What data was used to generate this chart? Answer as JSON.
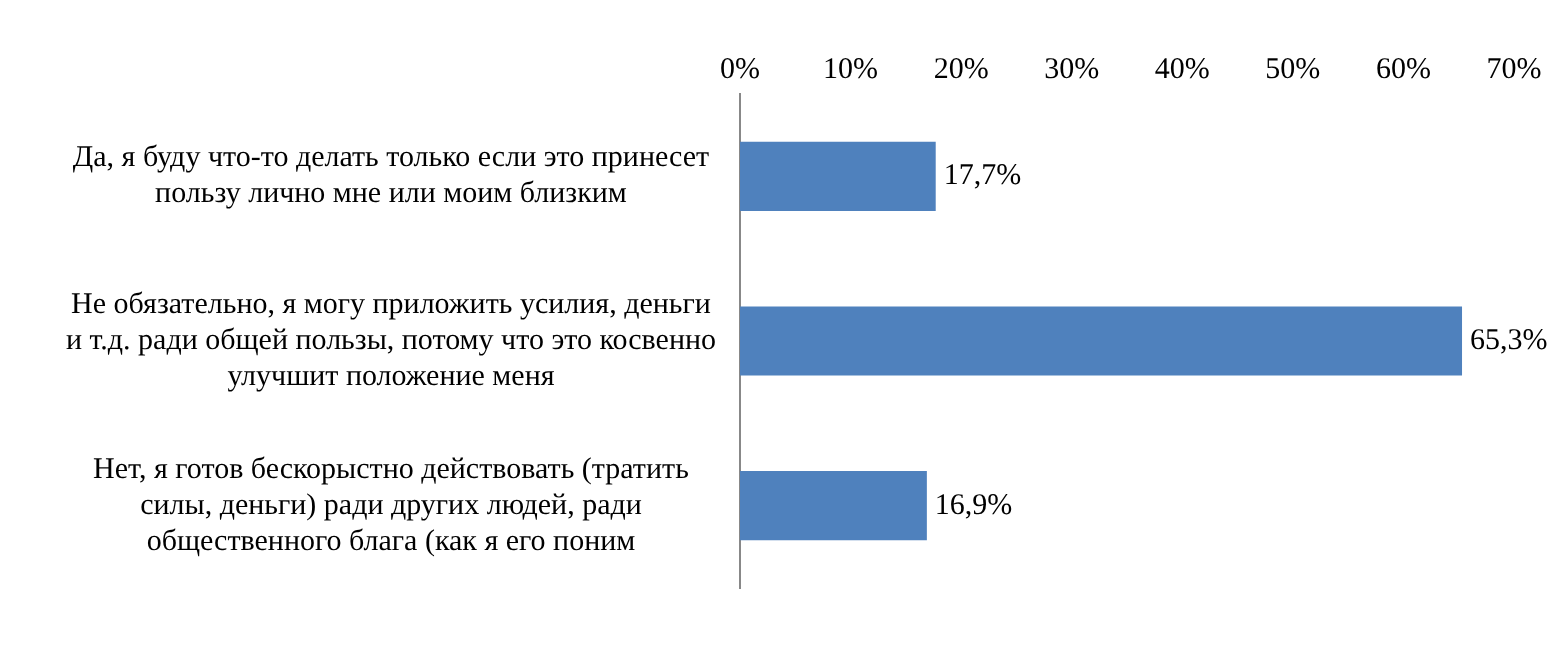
{
  "chart_data": {
    "type": "bar",
    "orientation": "horizontal",
    "categories": [
      "Да, я буду что-то делать только если это принесет пользу лично мне или моим близким",
      "Не обязательно, я могу приложить усилия, деньги и т.д. ради общей пользы, потому что это косвенно улучшит положение меня",
      "Нет, я готов бескорыстно действовать (тратить силы, деньги) ради других людей, ради общественного блага (как я его поним"
    ],
    "values": [
      17.7,
      65.3,
      16.9
    ],
    "value_labels": [
      "17,7%",
      "65,3%",
      "16,9%"
    ],
    "color": "#4f81bd",
    "xlim": [
      0,
      70
    ],
    "xticks": [
      {
        "value": 0,
        "label": "0%"
      },
      {
        "value": 10,
        "label": "10%"
      },
      {
        "value": 20,
        "label": "20%"
      },
      {
        "value": 30,
        "label": "30%"
      },
      {
        "value": 40,
        "label": "40%"
      },
      {
        "value": 50,
        "label": "50%"
      },
      {
        "value": 60,
        "label": "60%"
      },
      {
        "value": 70,
        "label": "70%"
      }
    ],
    "grid": false,
    "legend": false
  }
}
